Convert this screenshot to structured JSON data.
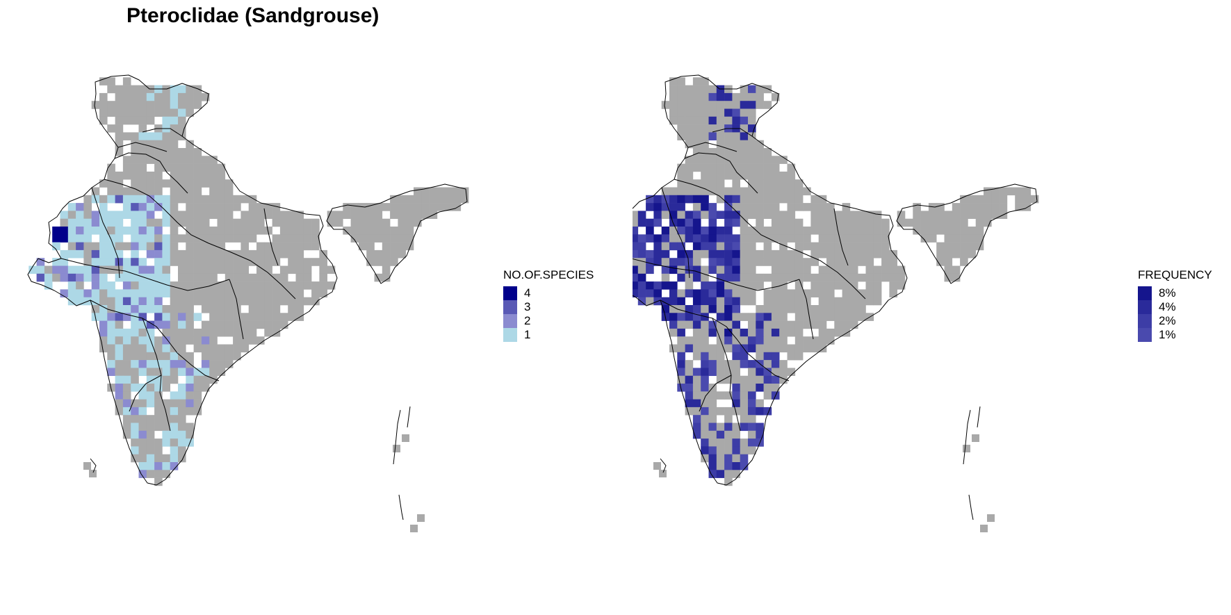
{
  "title": "Pteroclidae (Sandgrouse)",
  "colors": {
    "no_data": "#a9a9a9",
    "background": "#ffffff",
    "outline": "#000000"
  },
  "left_map": {
    "legend": {
      "title": "NO.OF.SPECIES",
      "entries": [
        {
          "label": "4",
          "color": "#00008b"
        },
        {
          "label": "3",
          "color": "#5959b5"
        },
        {
          "label": "2",
          "color": "#8b8bd0"
        },
        {
          "label": "1",
          "color": "#add8e6"
        }
      ]
    }
  },
  "right_map": {
    "legend": {
      "title": "FREQUENCY",
      "entries": [
        {
          "label": "8%",
          "color": "#15158d"
        },
        {
          "label": "4%",
          "color": "#2a2a9a"
        },
        {
          "label": "2%",
          "color": "#3d3da6"
        },
        {
          "label": "1%",
          "color": "#4a4aae"
        }
      ]
    }
  }
}
